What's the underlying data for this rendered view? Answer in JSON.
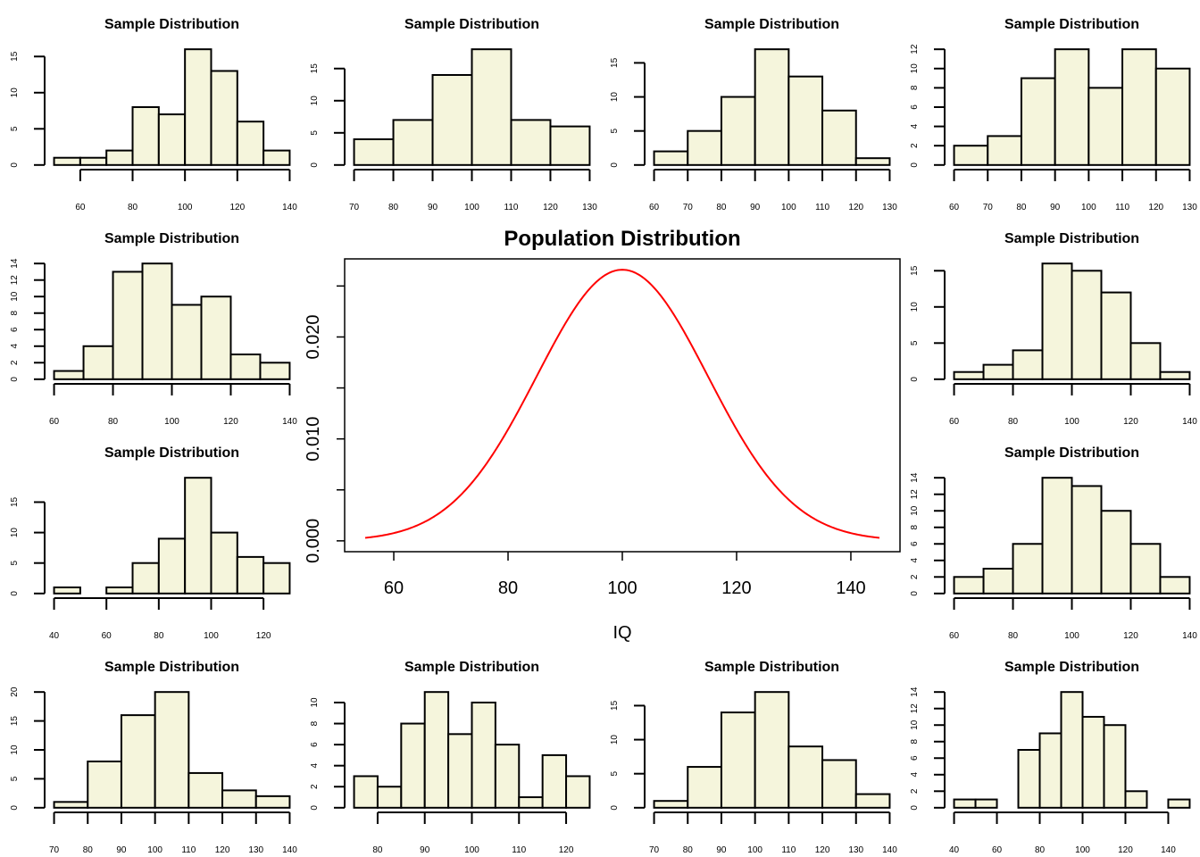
{
  "colors": {
    "bar_fill": "#F5F5DC",
    "bar_stroke": "#000000",
    "curve": "#FF0000",
    "background": "#FFFFFF"
  },
  "chart_data": [
    {
      "type": "bar",
      "subtype": "histogram",
      "title": "Sample Distribution",
      "breaks": [
        50,
        60,
        70,
        80,
        90,
        100,
        110,
        120,
        130,
        140
      ],
      "counts": [
        1,
        1,
        2,
        8,
        7,
        16,
        13,
        6,
        2
      ],
      "xticks": [
        60,
        80,
        100,
        120,
        140
      ],
      "yticks": [
        0,
        5,
        10,
        15
      ]
    },
    {
      "type": "bar",
      "subtype": "histogram",
      "title": "Sample Distribution",
      "breaks": [
        70,
        80,
        90,
        100,
        110,
        120,
        130
      ],
      "counts": [
        4,
        7,
        14,
        18,
        7,
        6
      ],
      "xticks": [
        70,
        80,
        90,
        100,
        110,
        120,
        130
      ],
      "yticks": [
        0,
        5,
        10,
        15
      ]
    },
    {
      "type": "bar",
      "subtype": "histogram",
      "title": "Sample Distribution",
      "breaks": [
        60,
        70,
        80,
        90,
        100,
        110,
        120,
        130
      ],
      "counts": [
        2,
        5,
        10,
        17,
        13,
        8,
        1
      ],
      "xticks": [
        60,
        70,
        80,
        90,
        100,
        110,
        120,
        130
      ],
      "yticks": [
        0,
        5,
        10,
        15
      ]
    },
    {
      "type": "bar",
      "subtype": "histogram",
      "title": "Sample Distribution",
      "breaks": [
        60,
        70,
        80,
        90,
        100,
        110,
        120,
        130
      ],
      "counts": [
        2,
        3,
        9,
        12,
        8,
        12,
        10
      ],
      "xticks": [
        60,
        70,
        80,
        90,
        100,
        110,
        120,
        130
      ],
      "yticks": [
        0,
        2,
        4,
        6,
        8,
        10,
        12
      ]
    },
    {
      "type": "bar",
      "subtype": "histogram",
      "title": "Sample Distribution",
      "breaks": [
        60,
        70,
        80,
        90,
        100,
        110,
        120,
        130,
        140
      ],
      "counts": [
        1,
        4,
        13,
        14,
        9,
        10,
        3,
        2
      ],
      "xticks": [
        60,
        80,
        100,
        120,
        140
      ],
      "yticks": [
        0,
        2,
        4,
        6,
        8,
        10,
        12,
        14
      ]
    },
    {
      "type": "bar",
      "subtype": "histogram",
      "title": "Sample Distribution",
      "breaks": [
        60,
        70,
        80,
        90,
        100,
        110,
        120,
        130,
        140
      ],
      "counts": [
        1,
        2,
        4,
        16,
        15,
        12,
        5,
        1
      ],
      "xticks": [
        60,
        80,
        100,
        120,
        140
      ],
      "yticks": [
        0,
        5,
        10,
        15
      ]
    },
    {
      "type": "bar",
      "subtype": "histogram",
      "title": "Sample Distribution",
      "breaks": [
        40,
        50,
        60,
        70,
        80,
        90,
        100,
        110,
        120,
        130
      ],
      "counts": [
        1,
        0,
        1,
        5,
        9,
        19,
        10,
        6,
        5
      ],
      "xticks": [
        40,
        60,
        80,
        100,
        120
      ],
      "yticks": [
        0,
        5,
        10,
        15
      ]
    },
    {
      "type": "bar",
      "subtype": "histogram",
      "title": "Sample Distribution",
      "breaks": [
        60,
        70,
        80,
        90,
        100,
        110,
        120,
        130,
        140
      ],
      "counts": [
        2,
        3,
        6,
        14,
        13,
        10,
        6,
        2
      ],
      "xticks": [
        60,
        80,
        100,
        120,
        140
      ],
      "yticks": [
        0,
        2,
        4,
        6,
        8,
        10,
        12,
        14
      ]
    },
    {
      "type": "bar",
      "subtype": "histogram",
      "title": "Sample Distribution",
      "breaks": [
        70,
        80,
        90,
        100,
        110,
        120,
        130,
        140
      ],
      "counts": [
        1,
        8,
        16,
        20,
        6,
        3,
        2
      ],
      "xticks": [
        70,
        80,
        90,
        100,
        110,
        120,
        130,
        140
      ],
      "yticks": [
        0,
        5,
        10,
        15,
        20
      ]
    },
    {
      "type": "bar",
      "subtype": "histogram",
      "title": "Sample Distribution",
      "breaks": [
        75,
        80,
        85,
        90,
        95,
        100,
        105,
        110,
        115,
        120,
        125
      ],
      "counts": [
        3,
        2,
        8,
        11,
        7,
        10,
        6,
        1,
        5,
        3
      ],
      "xticks": [
        80,
        90,
        100,
        110,
        120
      ],
      "yticks": [
        0,
        2,
        4,
        6,
        8,
        10
      ]
    },
    {
      "type": "bar",
      "subtype": "histogram",
      "title": "Sample Distribution",
      "breaks": [
        70,
        80,
        90,
        100,
        110,
        120,
        130,
        140
      ],
      "counts": [
        1,
        6,
        14,
        17,
        9,
        7,
        2
      ],
      "xticks": [
        70,
        80,
        90,
        100,
        110,
        120,
        130,
        140
      ],
      "yticks": [
        0,
        5,
        10,
        15
      ]
    },
    {
      "type": "bar",
      "subtype": "histogram",
      "title": "Sample Distribution",
      "breaks": [
        40,
        50,
        60,
        70,
        80,
        90,
        100,
        110,
        120,
        130,
        140,
        150
      ],
      "counts": [
        1,
        1,
        0,
        7,
        9,
        14,
        11,
        10,
        2,
        0,
        1
      ],
      "xticks": [
        40,
        60,
        80,
        100,
        120,
        140
      ],
      "yticks": [
        0,
        2,
        4,
        6,
        8,
        10,
        12,
        14
      ]
    },
    {
      "type": "line",
      "title": "Population Distribution",
      "xlabel": "IQ",
      "ylabel": "",
      "distribution": "normal",
      "mean": 100,
      "sd": 15,
      "xlim": [
        55,
        145
      ],
      "xticks": [
        60,
        80,
        100,
        120,
        140
      ],
      "yticks": [
        0,
        0.005,
        0.01,
        0.015,
        0.02,
        0.025
      ],
      "ytick_labels": [
        "0.000",
        "",
        "0.010",
        "",
        "0.020",
        ""
      ],
      "series": [
        {
          "x": [
            55,
            60,
            65,
            70,
            75,
            80,
            85,
            90,
            95,
            100,
            105,
            110,
            115,
            120,
            125,
            130,
            135,
            140,
            145
          ],
          "y": [
            0.000295,
            0.00076,
            0.001748,
            0.003599,
            0.006633,
            0.010934,
            0.016131,
            0.021296,
            0.025159,
            0.026596,
            0.025159,
            0.021296,
            0.016131,
            0.010934,
            0.006633,
            0.003599,
            0.001748,
            0.00076,
            0.000295
          ]
        }
      ]
    }
  ]
}
